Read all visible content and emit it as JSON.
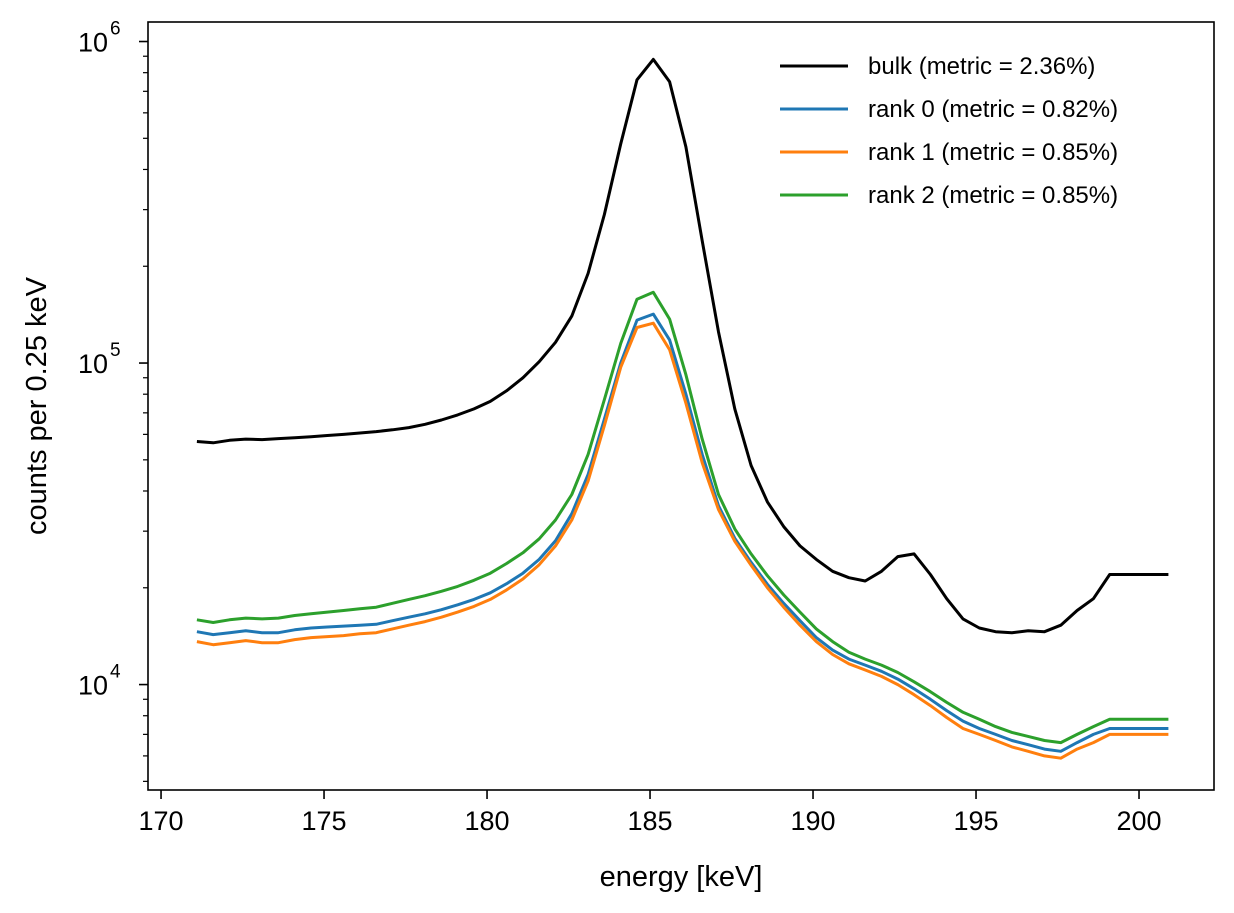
{
  "chart_data": {
    "type": "line",
    "title": "",
    "xlabel": "energy [keV]",
    "ylabel": "counts per 0.25 keV",
    "xlim": [
      169.6,
      202.3
    ],
    "ylim": [
      4700,
      1150000
    ],
    "yscale": "log",
    "grid": false,
    "legend_position": "top-right",
    "x_ticks": [
      {
        "value": 170,
        "label": "170"
      },
      {
        "value": 175,
        "label": "175"
      },
      {
        "value": 180,
        "label": "180"
      },
      {
        "value": 185,
        "label": "185"
      },
      {
        "value": 190,
        "label": "190"
      },
      {
        "value": 195,
        "label": "195"
      },
      {
        "value": 200,
        "label": "200"
      }
    ],
    "y_ticks": [
      {
        "value": 10000,
        "base": "10",
        "exp": "4"
      },
      {
        "value": 100000,
        "base": "10",
        "exp": "5"
      },
      {
        "value": 1000000,
        "base": "10",
        "exp": "6"
      }
    ],
    "x": [
      171.1,
      171.6,
      172.1,
      172.6,
      173.1,
      173.6,
      174.1,
      174.6,
      175.1,
      175.6,
      176.1,
      176.6,
      177.1,
      177.6,
      178.1,
      178.6,
      179.1,
      179.6,
      180.1,
      180.6,
      181.1,
      181.6,
      182.1,
      182.6,
      183.1,
      183.6,
      184.1,
      184.6,
      185.1,
      185.6,
      186.1,
      186.6,
      187.1,
      187.6,
      188.1,
      188.6,
      189.1,
      189.6,
      190.1,
      190.6,
      191.1,
      191.6,
      192.1,
      192.6,
      193.1,
      193.6,
      194.1,
      194.6,
      195.1,
      195.6,
      196.1,
      196.6,
      197.1,
      197.6,
      198.1,
      198.6,
      199.1,
      199.6,
      200.1,
      200.6,
      200.9
    ],
    "series": [
      {
        "name": "bulk (metric = 2.36%)",
        "color": "#000000",
        "values": [
          57000,
          56500,
          57500,
          58000,
          57800,
          58200,
          58600,
          59000,
          59500,
          60000,
          60600,
          61200,
          62000,
          63000,
          64500,
          66500,
          69000,
          72000,
          76000,
          82000,
          90000,
          101000,
          116000,
          140000,
          190000,
          290000,
          480000,
          760000,
          880000,
          750000,
          470000,
          240000,
          125000,
          72000,
          48000,
          37000,
          31000,
          27000,
          24500,
          22500,
          21500,
          21000,
          22500,
          25000,
          25500,
          22000,
          18500,
          16000,
          15000,
          14600,
          14500,
          14700,
          14600,
          15300,
          17000,
          18500,
          22000,
          22000,
          22000,
          22000,
          22000
        ]
      },
      {
        "name": "rank 0 (metric = 0.82%)",
        "color": "#1f77b4",
        "values": [
          14600,
          14300,
          14500,
          14700,
          14500,
          14500,
          14800,
          15000,
          15100,
          15200,
          15300,
          15400,
          15800,
          16200,
          16600,
          17100,
          17700,
          18400,
          19300,
          20600,
          22200,
          24500,
          28000,
          34000,
          45000,
          67000,
          100000,
          136000,
          142000,
          118000,
          80000,
          52000,
          36000,
          28500,
          24000,
          20500,
          17900,
          15800,
          14000,
          12800,
          12000,
          11500,
          11000,
          10400,
          9700,
          9000,
          8300,
          7700,
          7300,
          7000,
          6700,
          6500,
          6300,
          6200,
          6600,
          7000,
          7300,
          7300,
          7300,
          7300,
          7300
        ]
      },
      {
        "name": "rank 1 (metric = 0.85%)",
        "color": "#ff7f0e",
        "values": [
          13600,
          13300,
          13500,
          13700,
          13500,
          13500,
          13800,
          14000,
          14100,
          14200,
          14400,
          14500,
          14900,
          15300,
          15700,
          16200,
          16800,
          17500,
          18400,
          19700,
          21300,
          23600,
          27000,
          32500,
          43000,
          64000,
          97000,
          129000,
          133000,
          110000,
          75000,
          49000,
          35000,
          27900,
          23500,
          20000,
          17400,
          15300,
          13600,
          12400,
          11600,
          11100,
          10600,
          10000,
          9300,
          8600,
          7900,
          7300,
          7000,
          6700,
          6400,
          6200,
          6000,
          5900,
          6300,
          6600,
          7000,
          7000,
          7000,
          7000,
          7000
        ]
      },
      {
        "name": "rank 2 (metric = 0.85%)",
        "color": "#2ca02c",
        "values": [
          15900,
          15600,
          15900,
          16100,
          16000,
          16100,
          16400,
          16600,
          16800,
          17000,
          17200,
          17400,
          17900,
          18400,
          18900,
          19500,
          20200,
          21100,
          22200,
          23800,
          25700,
          28400,
          32500,
          39000,
          52000,
          77000,
          115000,
          158000,
          166000,
          137000,
          92000,
          58000,
          39000,
          30500,
          25500,
          21800,
          19000,
          16800,
          14900,
          13600,
          12600,
          12000,
          11500,
          10900,
          10200,
          9500,
          8800,
          8200,
          7800,
          7400,
          7100,
          6900,
          6700,
          6600,
          7000,
          7400,
          7800,
          7800,
          7800,
          7800,
          7800
        ]
      }
    ]
  }
}
